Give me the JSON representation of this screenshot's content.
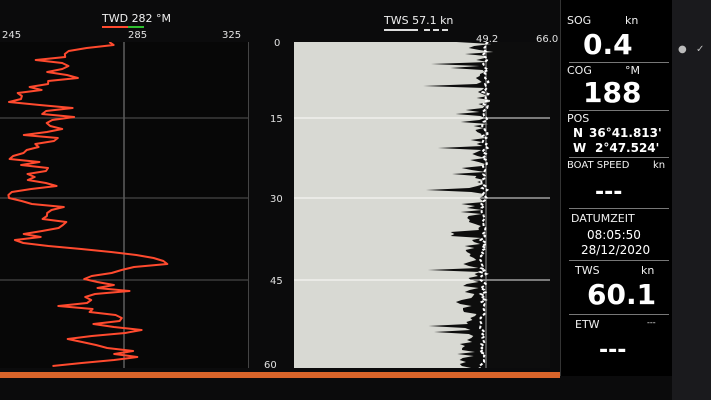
{
  "twd": {
    "header": "TWD 282 °M",
    "scale": [
      "245",
      "285",
      "325"
    ]
  },
  "time_axis": [
    "0",
    "15",
    "30",
    "45",
    "60"
  ],
  "tws": {
    "header": "TWS 57.1 kn",
    "scale": [
      "49.2",
      "66.0"
    ]
  },
  "sidebar": {
    "sog_label": "SOG",
    "sog_unit": "kn",
    "sog_value": "0.4",
    "cog_label": "COG",
    "cog_unit": "°M",
    "cog_value": "188",
    "pos_label": "POS",
    "pos_lat_hem": "N",
    "pos_lat": "36°41.813'",
    "pos_lon_hem": "W",
    "pos_lon": "2°47.524'",
    "boat_speed_label": "BOAT SPEED",
    "boat_speed_unit": "kn",
    "boat_speed_value": "---",
    "datumzeit_label": "DATUMZEIT",
    "time": "08:05:50",
    "date": "28/12/2020",
    "tws_label": "TWS",
    "tws_unit": "kn",
    "tws_value": "60.1",
    "etw_label": "ETW",
    "etw_unit": "---",
    "etw_value": "---"
  },
  "menu_icon": "menu-lines-icon",
  "colors": {
    "twd_trace": "#ff4a2e",
    "tws_fill": "#0d0d0d",
    "accent_bar": "#d9642a"
  }
}
